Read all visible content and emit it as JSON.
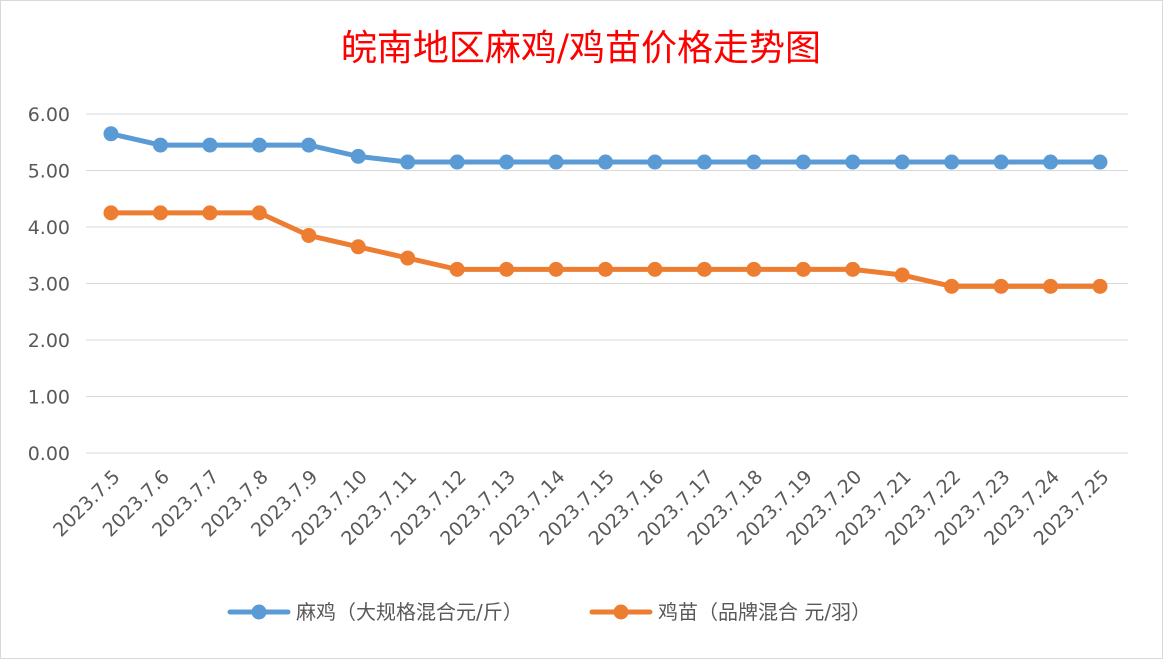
{
  "chart_data": {
    "type": "line",
    "title": "皖南地区麻鸡/鸡苗价格走势图",
    "xlabel": "",
    "ylabel": "",
    "categories": [
      "2023.7.5",
      "2023.7.6",
      "2023.7.7",
      "2023.7.8",
      "2023.7.9",
      "2023.7.10",
      "2023.7.11",
      "2023.7.12",
      "2023.7.13",
      "2023.7.14",
      "2023.7.15",
      "2023.7.16",
      "2023.7.17",
      "2023.7.18",
      "2023.7.19",
      "2023.7.20",
      "2023.7.21",
      "2023.7.22",
      "2023.7.23",
      "2023.7.24",
      "2023.7.25"
    ],
    "yticks": [
      "0.00",
      "1.00",
      "2.00",
      "3.00",
      "4.00",
      "5.00",
      "6.00"
    ],
    "ylim": [
      0,
      6
    ],
    "grid": true,
    "legend_position": "bottom",
    "series": [
      {
        "name": "麻鸡（大规格混合元/斤）",
        "color": "#5b9bd5",
        "values": [
          5.65,
          5.45,
          5.45,
          5.45,
          5.45,
          5.25,
          5.15,
          5.15,
          5.15,
          5.15,
          5.15,
          5.15,
          5.15,
          5.15,
          5.15,
          5.15,
          5.15,
          5.15,
          5.15,
          5.15,
          5.15
        ]
      },
      {
        "name": "鸡苗（品牌混合 元/羽）",
        "color": "#ed7d31",
        "values": [
          4.25,
          4.25,
          4.25,
          4.25,
          3.85,
          3.65,
          3.45,
          3.25,
          3.25,
          3.25,
          3.25,
          3.25,
          3.25,
          3.25,
          3.25,
          3.25,
          3.15,
          2.95,
          2.95,
          2.95,
          2.95
        ]
      }
    ]
  }
}
